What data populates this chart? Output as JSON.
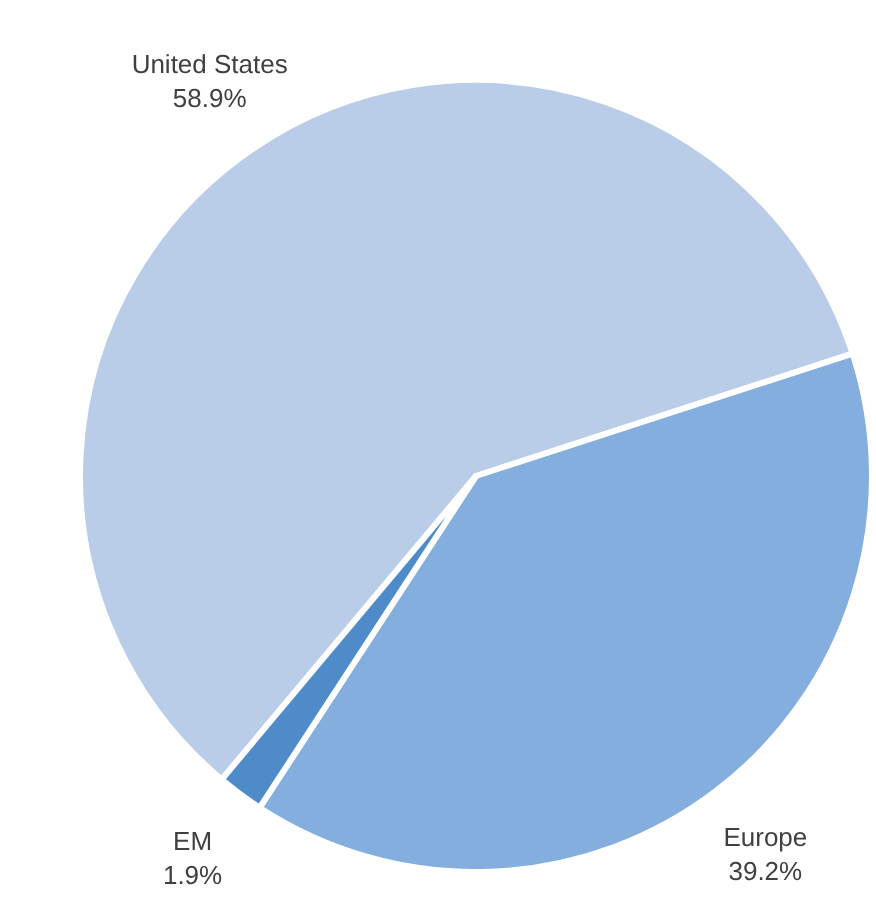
{
  "chart_data": {
    "type": "pie",
    "categories": [
      "United States",
      "Europe",
      "EM"
    ],
    "values": [
      58.9,
      39.2,
      1.9
    ],
    "value_labels": [
      "58.9%",
      "39.2%",
      "1.9%"
    ],
    "colors": [
      "#b9cde8",
      "#84aede",
      "#4e8bc8"
    ],
    "legend": false
  }
}
